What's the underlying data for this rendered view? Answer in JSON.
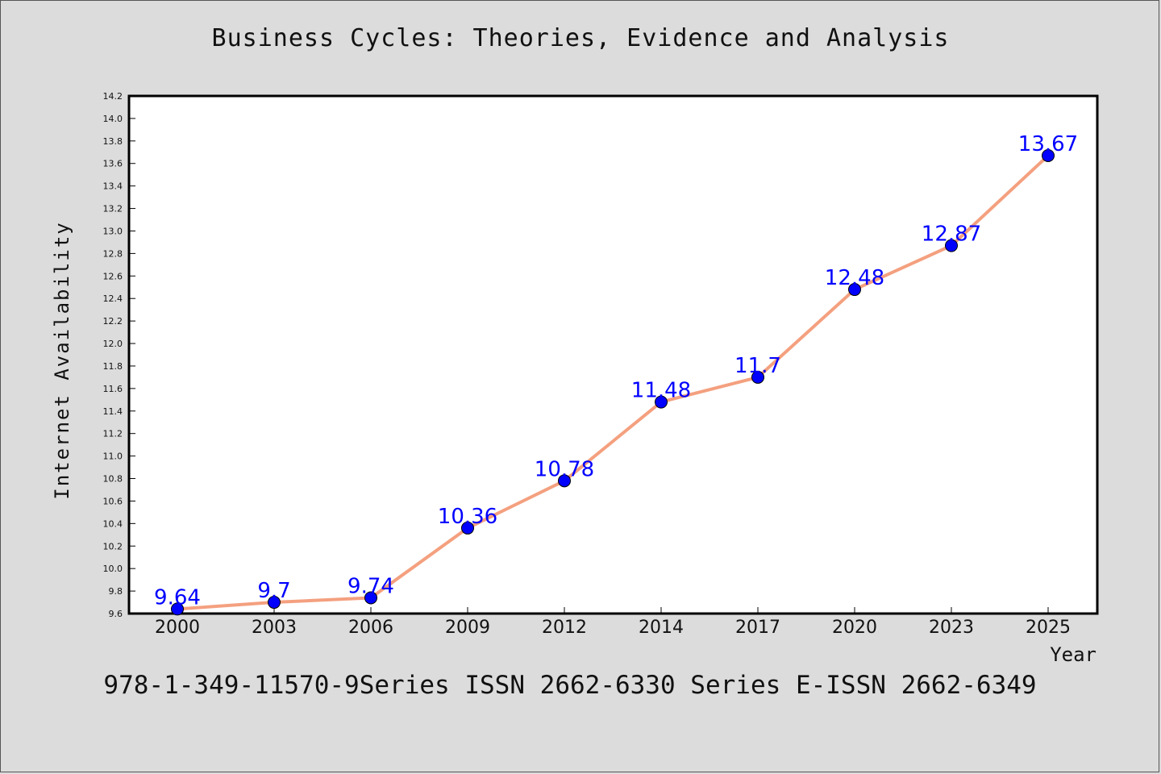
{
  "chart_data": {
    "type": "line",
    "title": "Business Cycles: Theories, Evidence and Analysis",
    "xlabel": "Year",
    "ylabel": "Internet Availability",
    "categories": [
      "2000",
      "2003",
      "2006",
      "2009",
      "2012",
      "2014",
      "2017",
      "2020",
      "2023",
      "2025"
    ],
    "series": [
      {
        "values": [
          9.64,
          9.7,
          9.74,
          10.36,
          10.78,
          11.48,
          11.7,
          12.48,
          12.87,
          13.67
        ],
        "labels": [
          "9.64",
          "9.7",
          "9.74",
          "10.36",
          "10.78",
          "11.48",
          "11.7",
          "12.48",
          "12.87",
          "13.67"
        ],
        "line_color": "#f4a07f",
        "marker_color": "#0000ff",
        "label_color": "#0000ff"
      }
    ],
    "ylim": [
      9.6,
      14.2
    ],
    "yticks": [
      "9.6",
      "9.8",
      "10.0",
      "10.2",
      "10.4",
      "10.6",
      "10.8",
      "11.0",
      "11.2",
      "11.4",
      "11.6",
      "11.8",
      "12.0",
      "12.2",
      "12.4",
      "12.6",
      "12.8",
      "13.0",
      "13.2",
      "13.4",
      "13.6",
      "13.8",
      "14.0",
      "14.2"
    ],
    "grid": false,
    "legend": "none"
  },
  "footer": "978-1-349-11570-9Series ISSN 2662-6330 Series E-ISSN 2662-6349",
  "colors": {
    "background": "#dcdcdc",
    "plot_background": "#ffffff"
  }
}
